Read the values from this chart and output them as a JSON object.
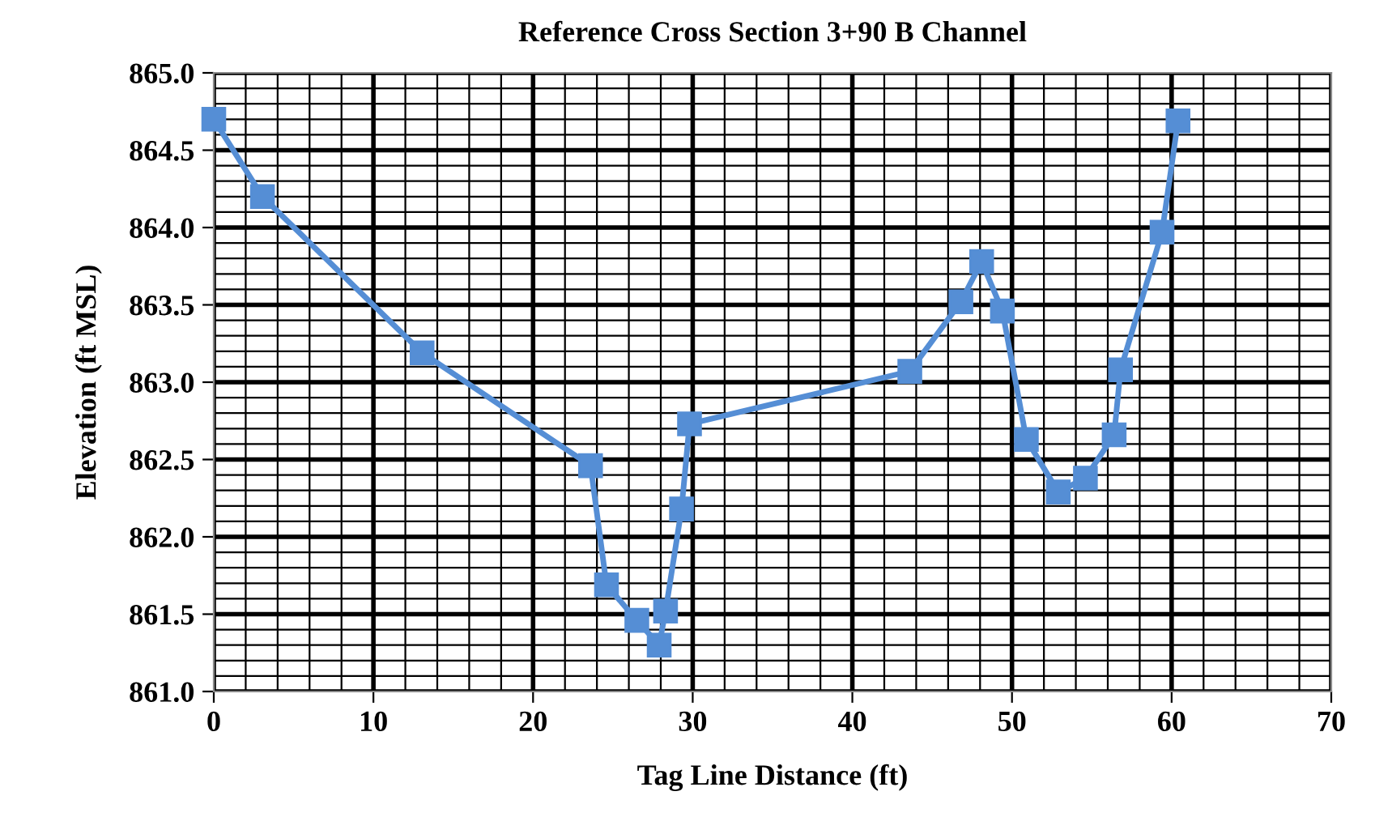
{
  "chart_data": {
    "type": "line",
    "title": "Reference Cross Section 3+90 B Channel",
    "xlabel": "Tag Line Distance (ft)",
    "ylabel": "Elevation (ft MSL)",
    "x": [
      0,
      3.05,
      13.05,
      23.6,
      24.6,
      26.5,
      27.9,
      28.3,
      29.3,
      29.8,
      43.6,
      46.8,
      48.1,
      49.4,
      50.9,
      52.9,
      54.6,
      56.4,
      56.8,
      59.4,
      60.4
    ],
    "series": [
      {
        "color": "#558ed5",
        "values": [
          864.7,
          864.2,
          863.19,
          862.46,
          861.69,
          861.46,
          861.3,
          861.52,
          862.18,
          862.73,
          863.07,
          863.52,
          863.78,
          863.46,
          862.63,
          862.29,
          862.38,
          862.66,
          863.08,
          863.97,
          864.69
        ]
      }
    ],
    "xlim": [
      0,
      70
    ],
    "xticks": [
      0,
      10,
      20,
      30,
      40,
      50,
      60,
      70
    ],
    "ylim": [
      861.0,
      865.0
    ],
    "yticks": [
      {
        "value": 861,
        "label": "861.0"
      },
      {
        "value": 861.5,
        "label": "861.5"
      },
      {
        "value": 862,
        "label": "862.0"
      },
      {
        "value": 862.5,
        "label": "862.5"
      },
      {
        "value": 863,
        "label": "863.0"
      },
      {
        "value": 863.5,
        "label": "863.5"
      },
      {
        "value": 864,
        "label": "864.0"
      },
      {
        "value": 864.5,
        "label": "864.5"
      },
      {
        "value": 865,
        "label": "865.0"
      }
    ],
    "grid": true,
    "legend": false,
    "marker": "square",
    "line_style": "solid"
  }
}
